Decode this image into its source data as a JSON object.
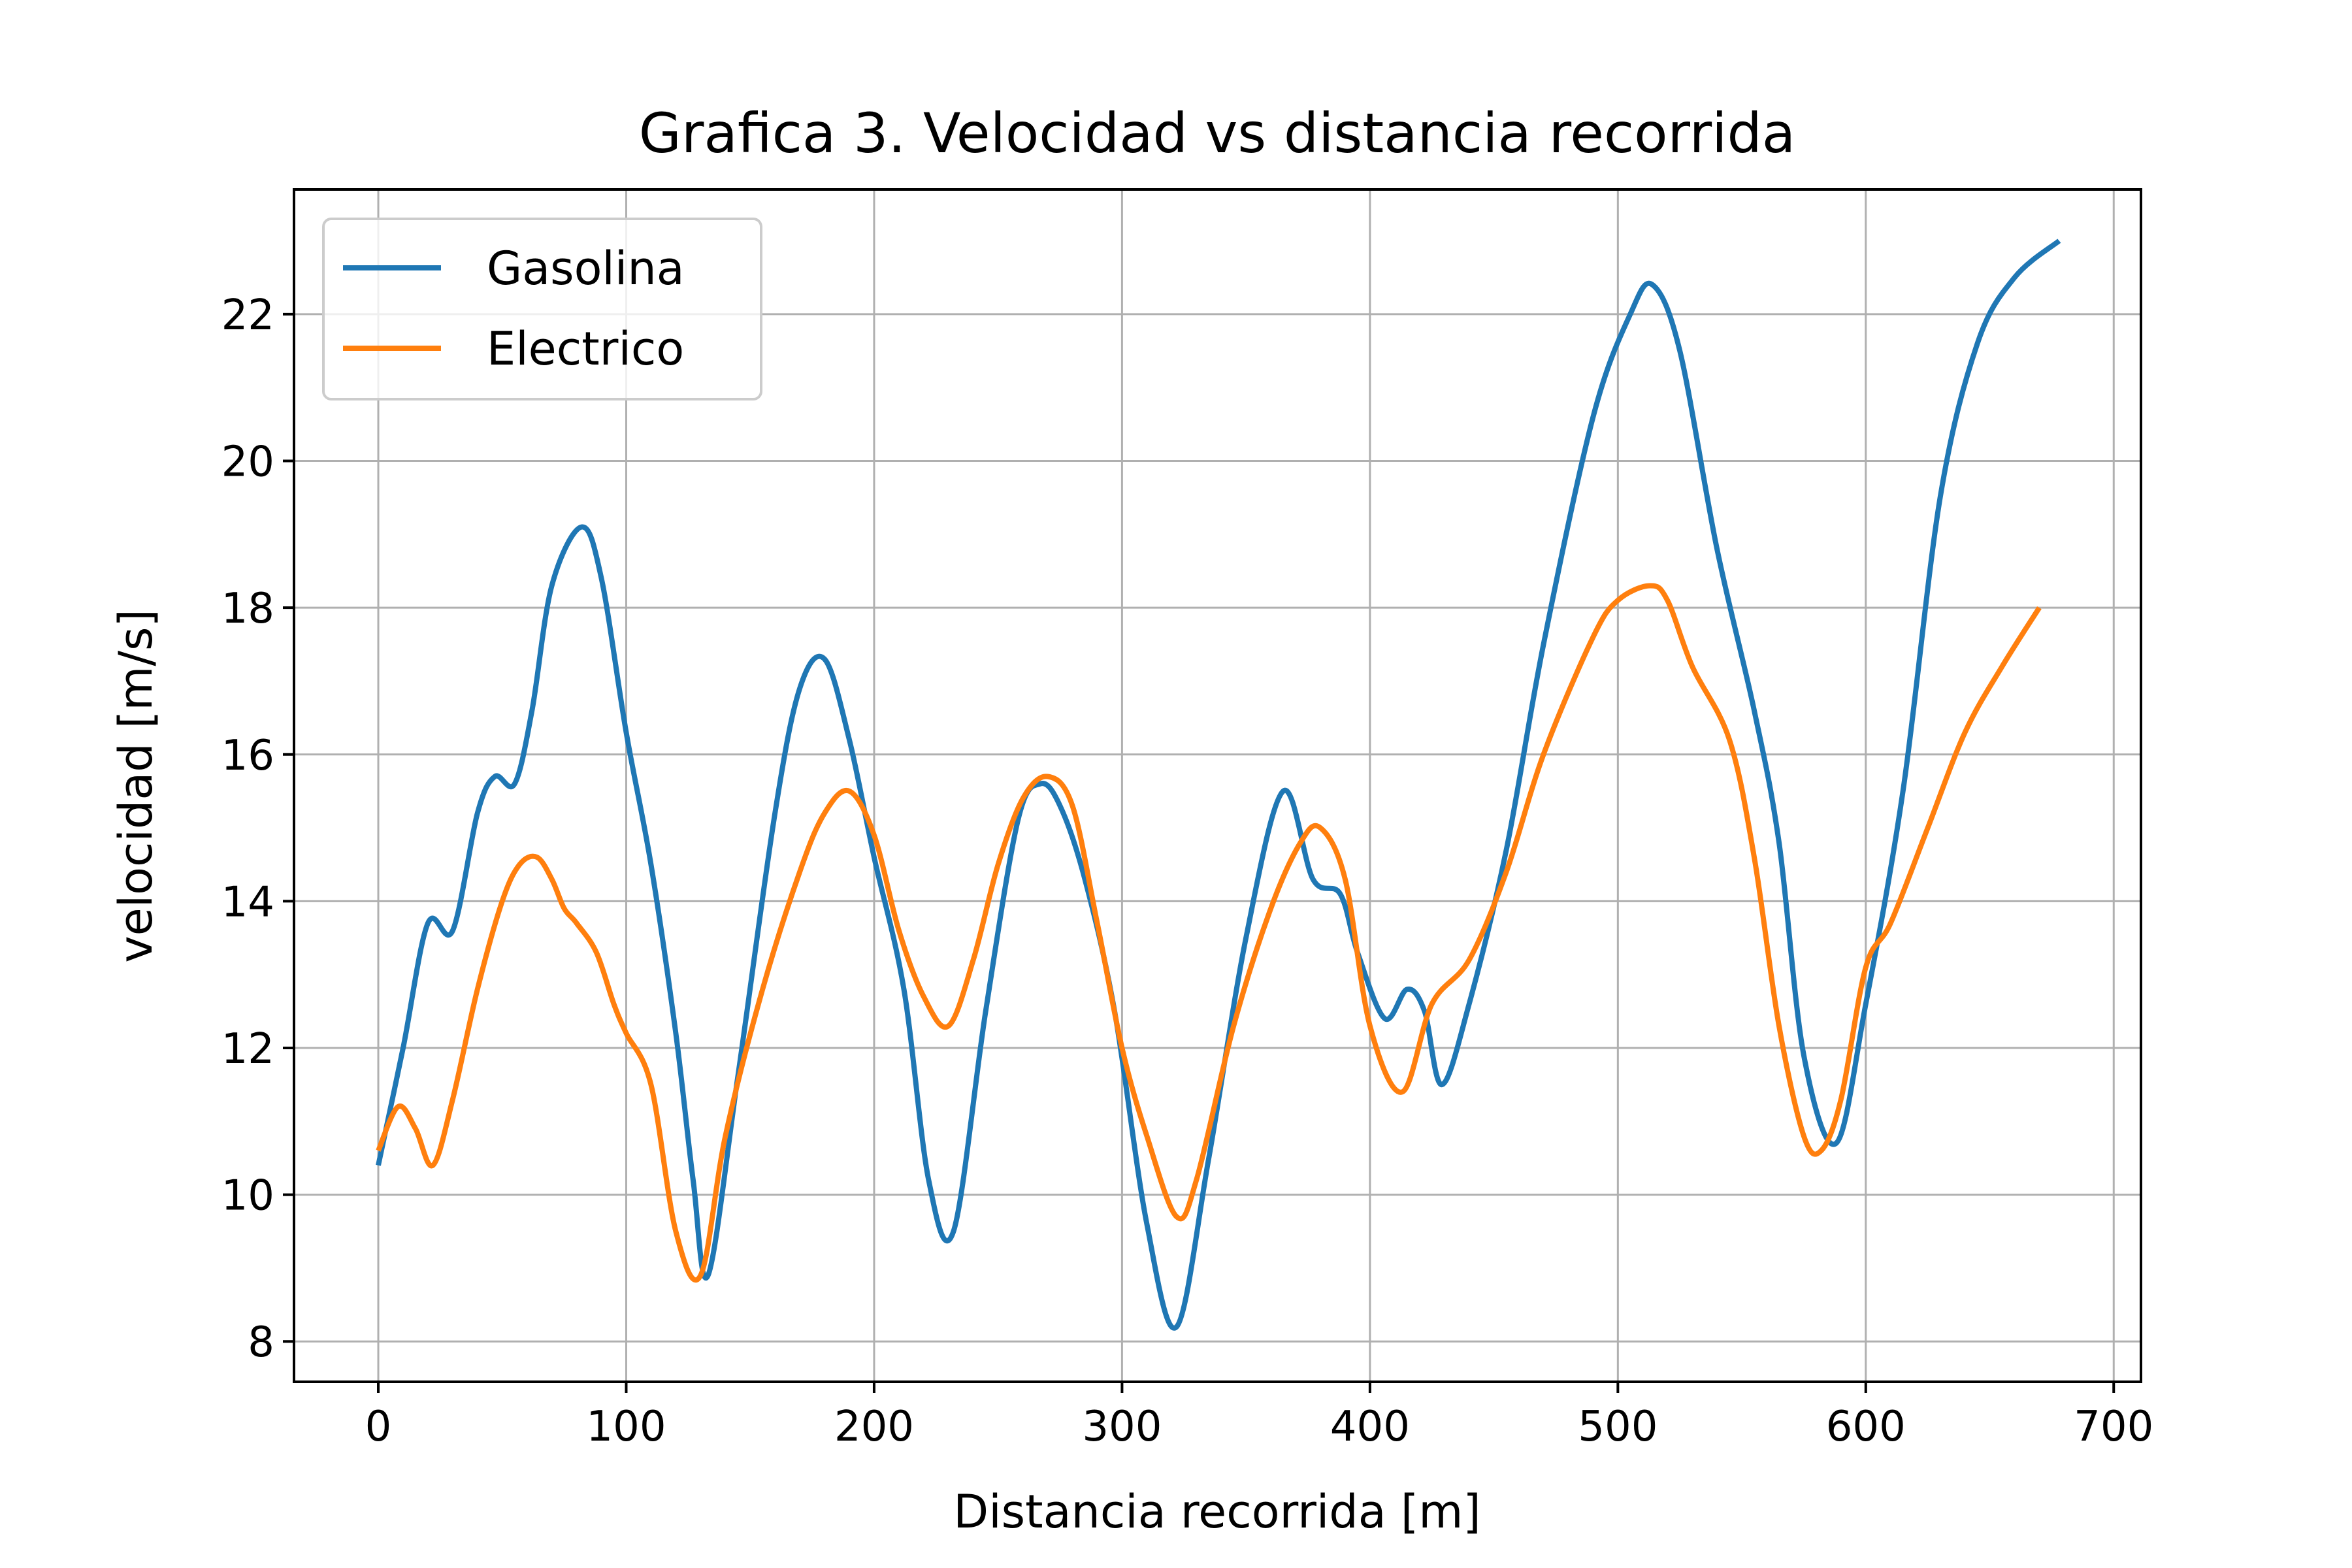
{
  "chart_data": {
    "type": "line",
    "title": "Grafica 3. Velocidad vs distancia recorrida",
    "xlabel": "Distancia recorrida [m]",
    "ylabel": "velocidad [m/s]",
    "xlim": [
      -34,
      711
    ],
    "ylim": [
      7.45,
      23.7
    ],
    "xticks": [
      0,
      100,
      200,
      300,
      400,
      500,
      600,
      700
    ],
    "yticks": [
      8,
      10,
      12,
      14,
      16,
      18,
      20,
      22
    ],
    "xtick_labels": [
      "0",
      "100",
      "200",
      "300",
      "400",
      "500",
      "600",
      "700"
    ],
    "ytick_labels": [
      "8",
      "10",
      "12",
      "14",
      "16",
      "18",
      "20",
      "22"
    ],
    "grid": true,
    "legend_position": "top-left",
    "series": [
      {
        "name": "Gasolina",
        "color": "#1f77b4",
        "x": [
          0,
          10,
          20,
          30,
          40,
          47,
          55,
          62,
          70,
          82,
          90,
          100,
          110,
          120,
          127,
          133,
          145,
          160,
          170,
          180,
          190,
          200,
          212,
          222,
          232,
          245,
          258,
          267,
          275,
          285,
          297,
          310,
          322,
          335,
          350,
          365,
          377,
          388,
          395,
          406,
          415,
          422,
          429,
          440,
          455,
          470,
          490,
          505,
          514,
          525,
          540,
          555,
          565,
          575,
          588,
          600,
          615,
          630,
          645,
          660,
          678
        ],
        "y": [
          10.4,
          12.0,
          13.7,
          13.6,
          15.2,
          15.7,
          15.6,
          16.6,
          18.3,
          19.1,
          18.4,
          16.3,
          14.5,
          12.2,
          10.2,
          8.9,
          11.6,
          15.2,
          16.9,
          17.3,
          16.2,
          14.6,
          12.8,
          10.2,
          9.5,
          12.5,
          15.1,
          15.6,
          15.3,
          14.3,
          12.5,
          9.6,
          8.2,
          10.5,
          13.5,
          15.5,
          14.3,
          14.1,
          13.3,
          12.4,
          12.8,
          12.5,
          11.5,
          12.6,
          14.7,
          17.5,
          20.6,
          22.0,
          22.4,
          21.5,
          18.8,
          16.6,
          14.8,
          11.9,
          10.7,
          12.6,
          15.5,
          19.5,
          21.6,
          22.5,
          23.0
        ]
      },
      {
        "name": "Electrico",
        "color": "#ff7f0e",
        "x": [
          0,
          8,
          15,
          22,
          30,
          40,
          50,
          57,
          64,
          70,
          75,
          80,
          88,
          95,
          100,
          110,
          120,
          130,
          140,
          155,
          170,
          180,
          190,
          200,
          210,
          220,
          230,
          240,
          250,
          260,
          270,
          280,
          290,
          300,
          310,
          322,
          330,
          345,
          360,
          372,
          380,
          390,
          400,
          413,
          425,
          440,
          455,
          470,
          490,
          500,
          513,
          520,
          530,
          545,
          555,
          565,
          575,
          582,
          590,
          600,
          610,
          625,
          640,
          655,
          670
        ],
        "y": [
          10.6,
          11.2,
          10.9,
          10.4,
          11.3,
          12.8,
          14.0,
          14.5,
          14.6,
          14.3,
          13.9,
          13.7,
          13.3,
          12.6,
          12.2,
          11.5,
          9.5,
          8.9,
          10.8,
          12.8,
          14.4,
          15.2,
          15.5,
          14.9,
          13.6,
          12.7,
          12.3,
          13.2,
          14.5,
          15.4,
          15.7,
          15.3,
          13.7,
          12.0,
          10.8,
          9.7,
          10.2,
          12.3,
          13.9,
          14.8,
          15.0,
          14.3,
          12.3,
          11.4,
          12.6,
          13.2,
          14.4,
          16.0,
          17.6,
          18.1,
          18.3,
          18.1,
          17.2,
          16.2,
          14.6,
          12.3,
          10.8,
          10.6,
          11.3,
          13.1,
          13.7,
          15.0,
          16.3,
          17.2,
          18.0
        ]
      }
    ]
  }
}
